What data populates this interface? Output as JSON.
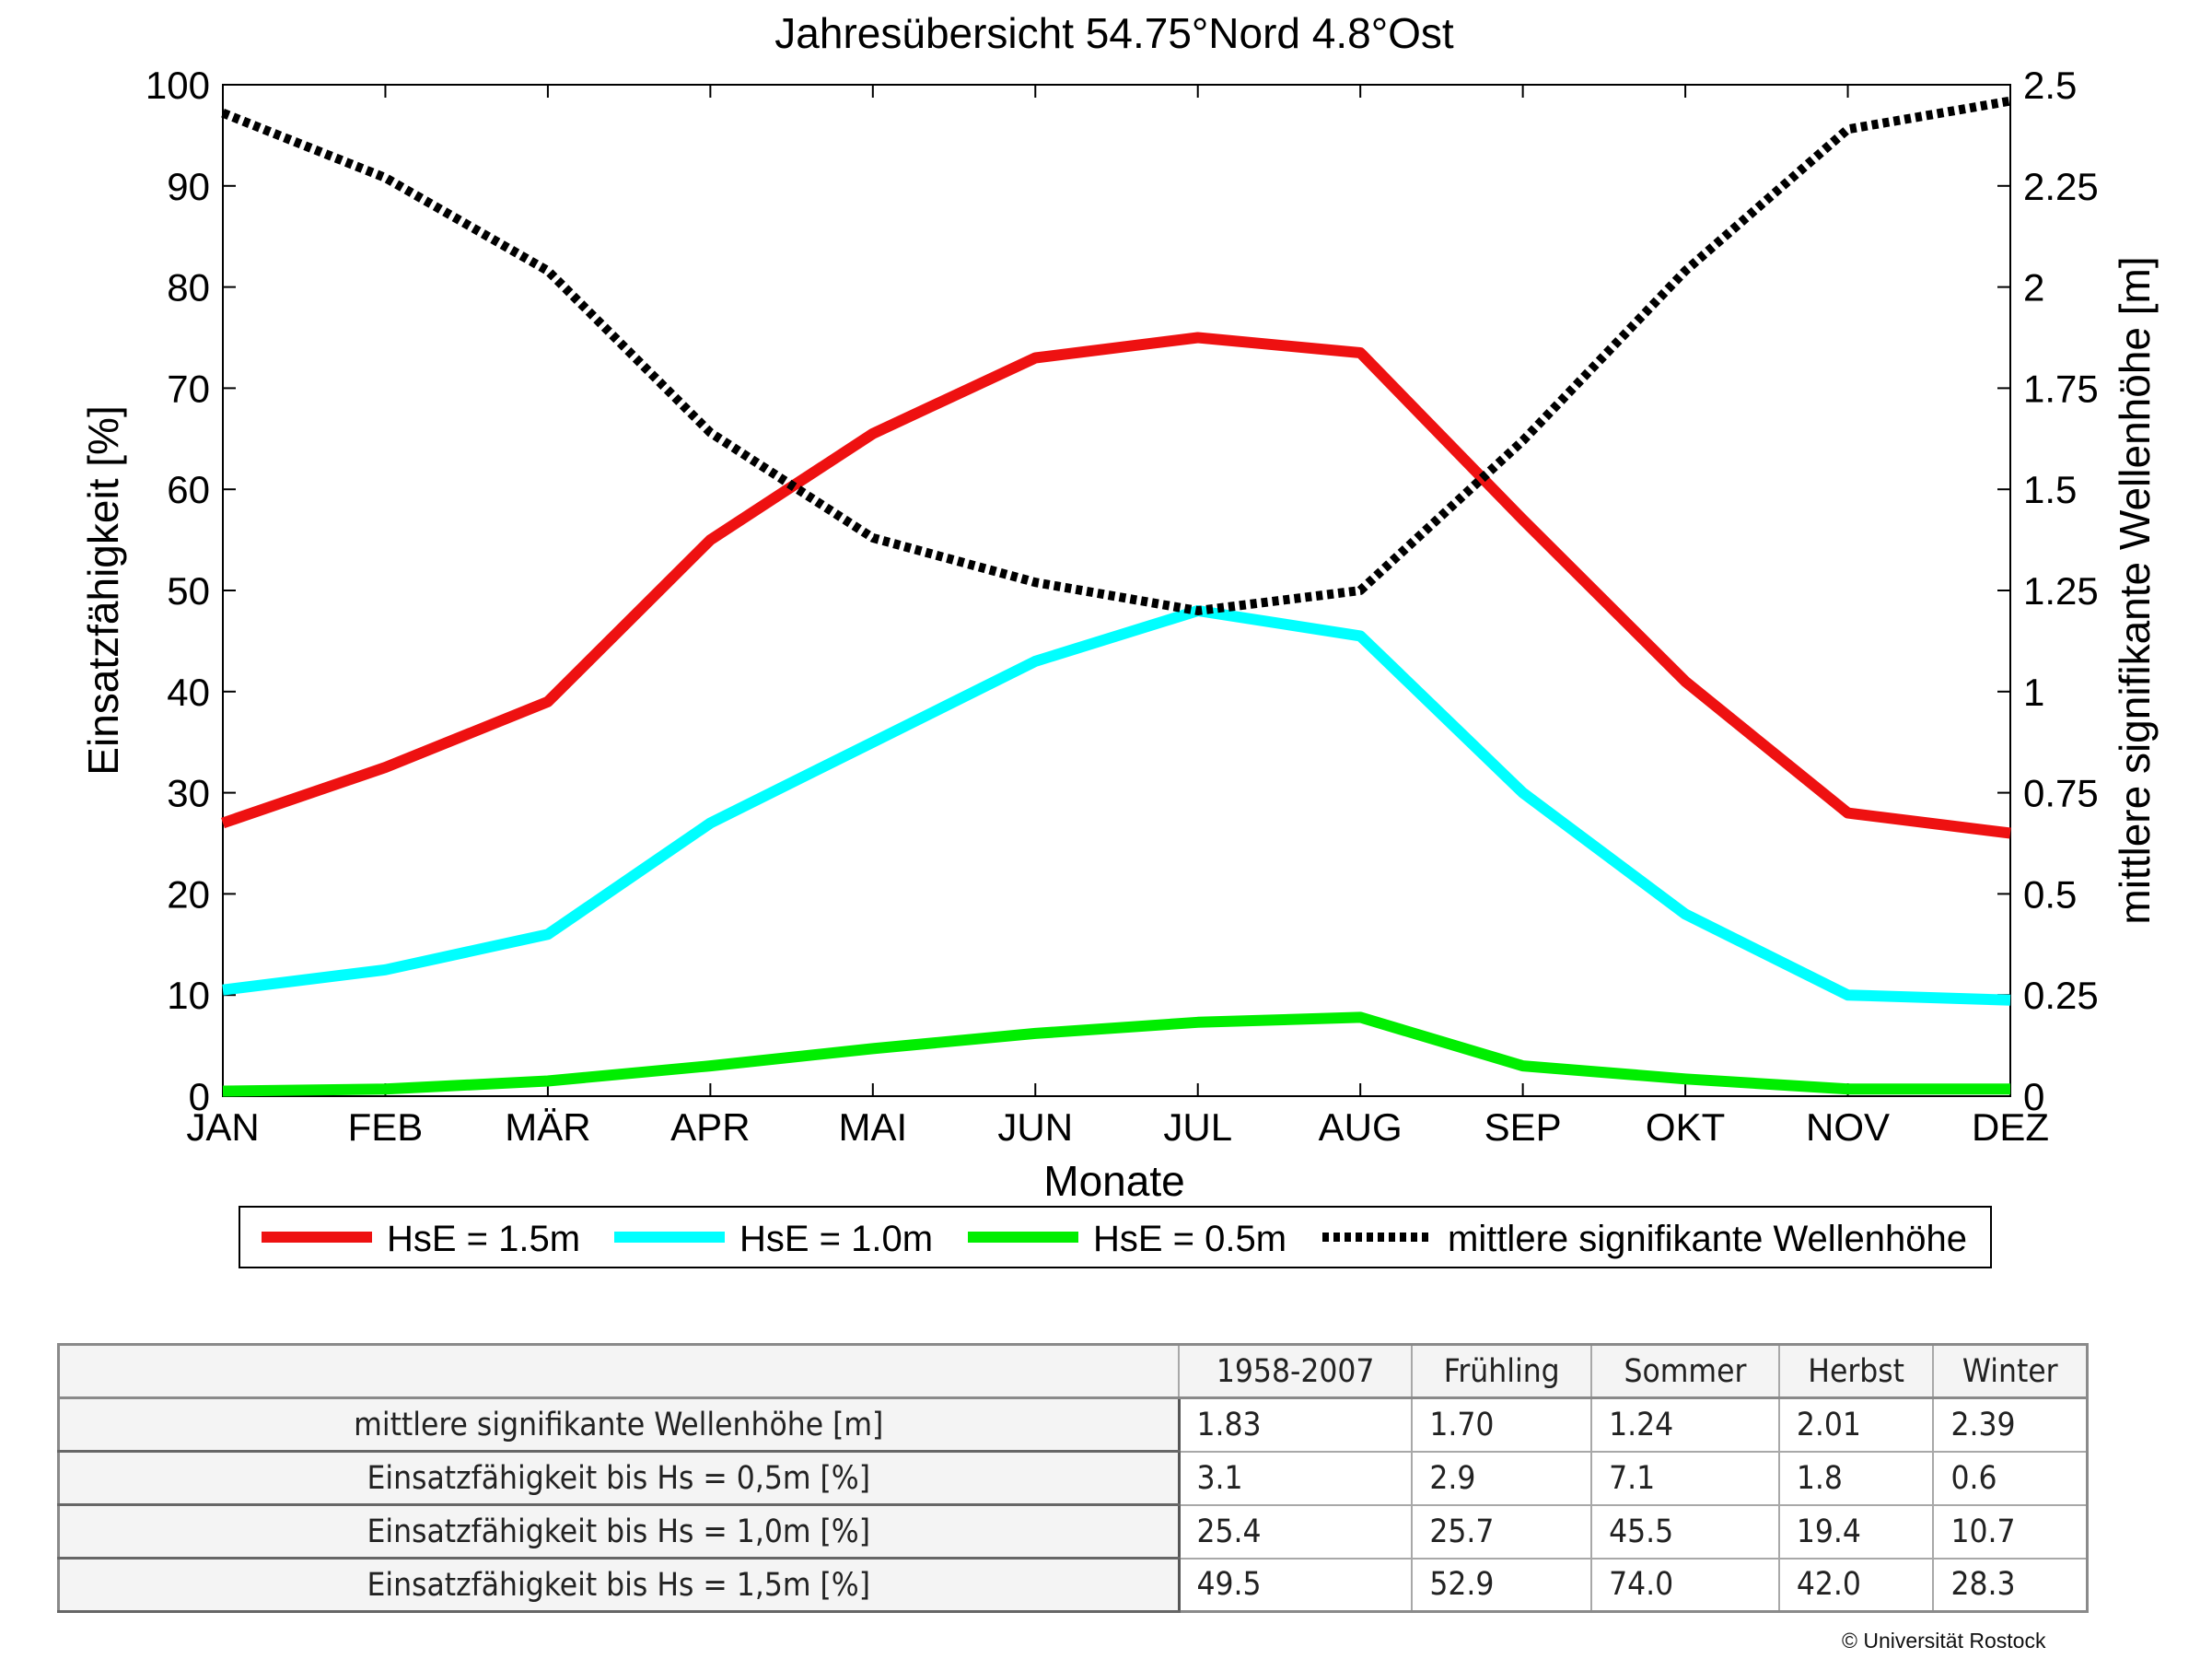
{
  "chart_data": {
    "type": "line",
    "title": "Jahresübersicht  54.75°Nord  4.8°Ost",
    "xlabel": "Monate",
    "ylabel_left": "Einsatzfähigkeit [%]",
    "ylabel_right": "mittlere signifikante Wellenhöhe [m]",
    "categories": [
      "JAN",
      "FEB",
      "MÄR",
      "APR",
      "MAI",
      "JUN",
      "JUL",
      "AUG",
      "SEP",
      "OKT",
      "NOV",
      "DEZ"
    ],
    "ylim_left": [
      0,
      100
    ],
    "yticks_left": [
      "0",
      "10",
      "20",
      "30",
      "40",
      "50",
      "60",
      "70",
      "80",
      "90",
      "100"
    ],
    "ylim_right": [
      0,
      2.5
    ],
    "yticks_right": [
      "0",
      "0.25",
      "0.5",
      "0.75",
      "1",
      "1.25",
      "1.5",
      "1.75",
      "2",
      "2.25",
      "2.5"
    ],
    "grid": false,
    "legend_position": "bottom",
    "series": [
      {
        "name": "HsE = 1.5m",
        "axis": "left",
        "color": "#ee1111",
        "style": "solid",
        "values": [
          27,
          32.5,
          39,
          55,
          65.5,
          73,
          75,
          73.5,
          57,
          41,
          28,
          26
        ]
      },
      {
        "name": "HsE = 1.0m",
        "axis": "left",
        "color": "#00ffff",
        "style": "solid",
        "values": [
          10.5,
          12.5,
          16,
          27,
          35,
          43,
          48,
          45.5,
          30,
          18,
          10,
          9.5
        ]
      },
      {
        "name": "HsE = 0.5m",
        "axis": "left",
        "color": "#00ee00",
        "style": "solid",
        "values": [
          0.5,
          0.7,
          1.5,
          3,
          4.7,
          6.2,
          7.3,
          7.8,
          3,
          1.7,
          0.7,
          0.7
        ]
      },
      {
        "name": "mittlere signifikante Wellenhöhe",
        "axis": "right",
        "color": "#000000",
        "style": "dotted",
        "values": [
          2.43,
          2.27,
          2.04,
          1.64,
          1.38,
          1.27,
          1.2,
          1.25,
          1.62,
          2.04,
          2.39,
          2.46
        ]
      }
    ]
  },
  "table": {
    "columns": [
      "1958-2007",
      "Frühling",
      "Sommer",
      "Herbst",
      "Winter"
    ],
    "rows": [
      {
        "label": "mittlere signifikante Wellenhöhe [m]",
        "values": [
          "1.83",
          "1.70",
          "1.24",
          "2.01",
          "2.39"
        ]
      },
      {
        "label": "Einsatzfähigkeit bis Hs = 0,5m [%]",
        "values": [
          "3.1",
          "2.9",
          "7.1",
          "1.8",
          "0.6"
        ]
      },
      {
        "label": "Einsatzfähigkeit bis Hs = 1,0m [%]",
        "values": [
          "25.4",
          "25.7",
          "45.5",
          "19.4",
          "10.7"
        ]
      },
      {
        "label": "Einsatzfähigkeit bis Hs = 1,5m [%]",
        "values": [
          "49.5",
          "52.9",
          "74.0",
          "42.0",
          "28.3"
        ]
      }
    ]
  },
  "footer": {
    "copyright": "© Universität Rostock"
  }
}
